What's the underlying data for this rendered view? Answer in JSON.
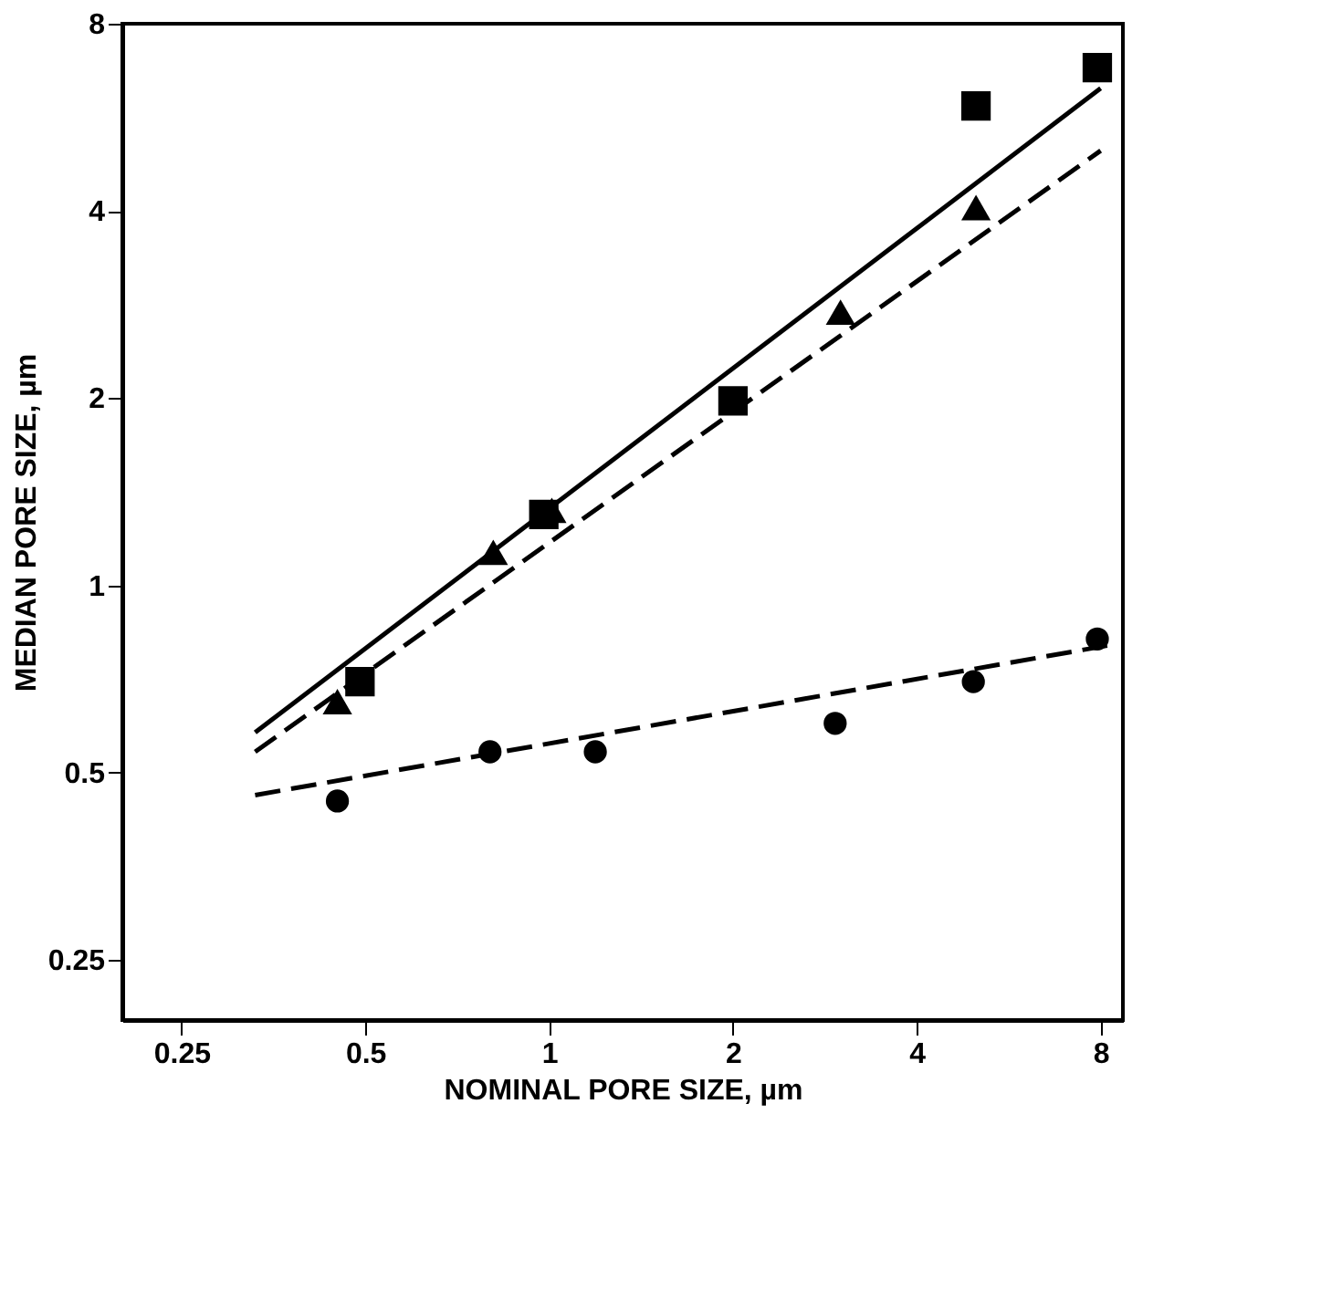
{
  "chart_data": {
    "type": "scatter",
    "xlabel": "NOMINAL PORE SIZE, µm",
    "ylabel": "MEDIAN PORE SIZE, µm",
    "log": "xy",
    "xlim": [
      0.2,
      8.7
    ],
    "ylim": [
      0.2,
      8
    ],
    "xticks": [
      0.25,
      0.5,
      1,
      2,
      4,
      8
    ],
    "yticks": [
      0.25,
      0.5,
      1,
      2,
      4,
      8
    ],
    "grid": false,
    "series": [
      {
        "type": "line",
        "color": "#000000",
        "line_style": "solid",
        "marker": "none",
        "x": [
          0.33,
          8
        ],
        "values": [
          0.58,
          6.3
        ]
      },
      {
        "type": "line",
        "color": "#000000",
        "line_style": "dashed",
        "marker": "none",
        "x": [
          0.33,
          8
        ],
        "values": [
          0.54,
          5.0
        ]
      },
      {
        "type": "line",
        "color": "#000000",
        "line_style": "dashed",
        "marker": "none",
        "x": [
          0.33,
          8.2
        ],
        "values": [
          0.46,
          0.8
        ]
      },
      {
        "type": "scatter",
        "color": "#000000",
        "marker": "square",
        "x": [
          0.49,
          0.98,
          2.0,
          5.0,
          7.9
        ],
        "values": [
          0.7,
          1.3,
          1.98,
          5.9,
          6.8
        ]
      },
      {
        "type": "scatter",
        "color": "#000000",
        "marker": "triangle",
        "x": [
          0.45,
          0.81,
          1.01,
          3.0,
          5.0
        ],
        "values": [
          0.65,
          1.13,
          1.32,
          2.75,
          4.05
        ]
      },
      {
        "type": "scatter",
        "color": "#000000",
        "marker": "circle",
        "x": [
          0.45,
          0.8,
          1.19,
          2.94,
          4.95,
          7.9
        ],
        "values": [
          0.45,
          0.54,
          0.54,
          0.6,
          0.7,
          0.82
        ]
      }
    ]
  }
}
